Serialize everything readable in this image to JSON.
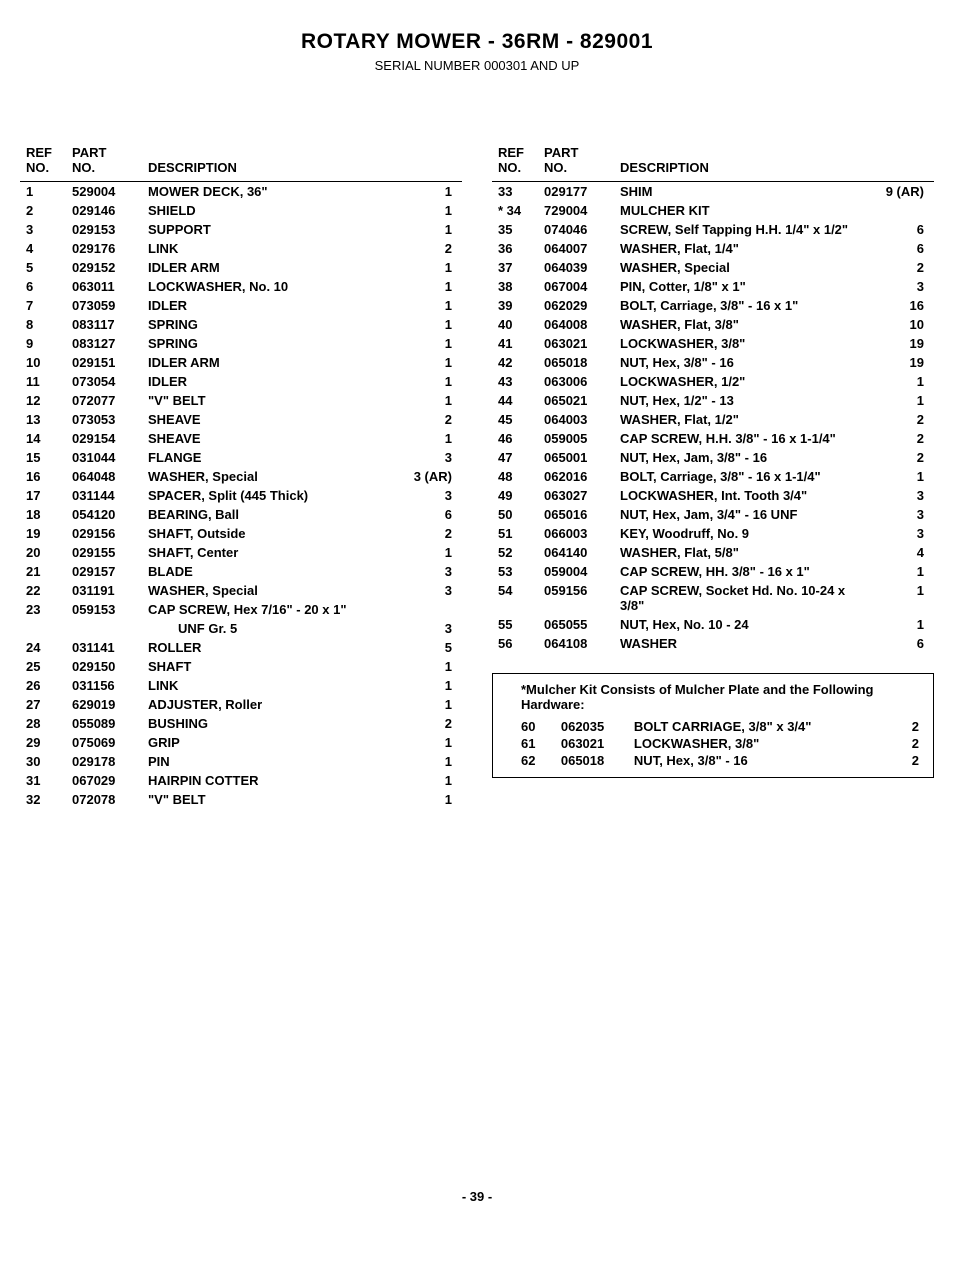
{
  "title": "ROTARY MOWER - 36RM - 829001",
  "subtitle": "SERIAL NUMBER 000301 AND UP",
  "page_number": "- 39 -",
  "headers": {
    "ref": "REF NO.",
    "part": "PART NO.",
    "desc": "DESCRIPTION",
    "qty": ""
  },
  "left_rows": [
    {
      "ref": "1",
      "part": "529004",
      "desc": "MOWER DECK, 36\"",
      "qty": "1"
    },
    {
      "ref": "2",
      "part": "029146",
      "desc": "SHIELD",
      "qty": "1"
    },
    {
      "ref": "3",
      "part": "029153",
      "desc": "SUPPORT",
      "qty": "1"
    },
    {
      "ref": "4",
      "part": "029176",
      "desc": "LINK",
      "qty": "2"
    },
    {
      "ref": "5",
      "part": "029152",
      "desc": "IDLER ARM",
      "qty": "1"
    },
    {
      "ref": "6",
      "part": "063011",
      "desc": "LOCKWASHER, No. 10",
      "qty": "1"
    },
    {
      "ref": "7",
      "part": "073059",
      "desc": "IDLER",
      "qty": "1"
    },
    {
      "ref": "8",
      "part": "083117",
      "desc": "SPRING",
      "qty": "1"
    },
    {
      "ref": "9",
      "part": "083127",
      "desc": "SPRING",
      "qty": "1"
    },
    {
      "ref": "10",
      "part": "029151",
      "desc": "IDLER ARM",
      "qty": "1"
    },
    {
      "ref": "11",
      "part": "073054",
      "desc": "IDLER",
      "qty": "1"
    },
    {
      "ref": "12",
      "part": "072077",
      "desc": "\"V\" BELT",
      "qty": "1"
    },
    {
      "ref": "13",
      "part": "073053",
      "desc": "SHEAVE",
      "qty": "2"
    },
    {
      "ref": "14",
      "part": "029154",
      "desc": "SHEAVE",
      "qty": "1"
    },
    {
      "ref": "15",
      "part": "031044",
      "desc": "FLANGE",
      "qty": "3"
    },
    {
      "ref": "16",
      "part": "064048",
      "desc": "WASHER, Special",
      "qty": "3 (AR)"
    },
    {
      "ref": "17",
      "part": "031144",
      "desc": "SPACER, Split (445 Thick)",
      "qty": "3"
    },
    {
      "ref": "18",
      "part": "054120",
      "desc": "BEARING, Ball",
      "qty": "6"
    },
    {
      "ref": "19",
      "part": "029156",
      "desc": "SHAFT, Outside",
      "qty": "2"
    },
    {
      "ref": "20",
      "part": "029155",
      "desc": "SHAFT, Center",
      "qty": "1"
    },
    {
      "ref": "21",
      "part": "029157",
      "desc": "BLADE",
      "qty": "3"
    },
    {
      "ref": "22",
      "part": "031191",
      "desc": "WASHER, Special",
      "qty": "3"
    },
    {
      "ref": "23",
      "part": "059153",
      "desc": "CAP SCREW, Hex 7/16\" - 20 x 1\"",
      "desc2": "UNF Gr. 5",
      "qty": "3"
    },
    {
      "ref": "24",
      "part": "031141",
      "desc": "ROLLER",
      "qty": "5"
    },
    {
      "ref": "25",
      "part": "029150",
      "desc": "SHAFT",
      "qty": "1"
    },
    {
      "ref": "26",
      "part": "031156",
      "desc": "LINK",
      "qty": "1"
    },
    {
      "ref": "27",
      "part": "629019",
      "desc": "ADJUSTER, Roller",
      "qty": "1"
    },
    {
      "ref": "28",
      "part": "055089",
      "desc": "BUSHING",
      "qty": "2"
    },
    {
      "ref": "29",
      "part": "075069",
      "desc": "GRIP",
      "qty": "1"
    },
    {
      "ref": "30",
      "part": "029178",
      "desc": "PIN",
      "qty": "1"
    },
    {
      "ref": "31",
      "part": "067029",
      "desc": "HAIRPIN COTTER",
      "qty": "1"
    },
    {
      "ref": "32",
      "part": "072078",
      "desc": "\"V\" BELT",
      "qty": "1"
    }
  ],
  "right_rows": [
    {
      "ref": "33",
      "part": "029177",
      "desc": "SHIM",
      "qty": "9 (AR)"
    },
    {
      "ref": "* 34",
      "part": "729004",
      "desc": "MULCHER KIT",
      "qty": ""
    },
    {
      "ref": "35",
      "part": "074046",
      "desc": "SCREW, Self Tapping H.H. 1/4\" x 1/2\"",
      "qty": "6"
    },
    {
      "ref": "36",
      "part": "064007",
      "desc": "WASHER, Flat, 1/4\"",
      "qty": "6"
    },
    {
      "ref": "37",
      "part": "064039",
      "desc": "WASHER, Special",
      "qty": "2"
    },
    {
      "ref": "38",
      "part": "067004",
      "desc": "PIN, Cotter, 1/8\" x 1\"",
      "qty": "3"
    },
    {
      "ref": "39",
      "part": "062029",
      "desc": "BOLT, Carriage, 3/8\" - 16 x 1\"",
      "qty": "16"
    },
    {
      "ref": "40",
      "part": "064008",
      "desc": "WASHER, Flat, 3/8\"",
      "qty": "10"
    },
    {
      "ref": "41",
      "part": "063021",
      "desc": "LOCKWASHER, 3/8\"",
      "qty": "19"
    },
    {
      "ref": "42",
      "part": "065018",
      "desc": "NUT, Hex, 3/8\" - 16",
      "qty": "19"
    },
    {
      "ref": "43",
      "part": "063006",
      "desc": "LOCKWASHER, 1/2\"",
      "qty": "1"
    },
    {
      "ref": "44",
      "part": "065021",
      "desc": "NUT, Hex, 1/2\" - 13",
      "qty": "1"
    },
    {
      "ref": "45",
      "part": "064003",
      "desc": "WASHER, Flat, 1/2\"",
      "qty": "2"
    },
    {
      "ref": "46",
      "part": "059005",
      "desc": "CAP SCREW, H.H. 3/8\" - 16 x 1-1/4\"",
      "qty": "2"
    },
    {
      "ref": "47",
      "part": "065001",
      "desc": "NUT, Hex, Jam, 3/8\" - 16",
      "qty": "2"
    },
    {
      "ref": "48",
      "part": "062016",
      "desc": "BOLT, Carriage, 3/8\" - 16 x 1-1/4\"",
      "qty": "1"
    },
    {
      "ref": "49",
      "part": "063027",
      "desc": "LOCKWASHER, Int. Tooth 3/4\"",
      "qty": "3"
    },
    {
      "ref": "50",
      "part": "065016",
      "desc": "NUT, Hex, Jam, 3/4\" - 16 UNF",
      "qty": "3"
    },
    {
      "ref": "51",
      "part": "066003",
      "desc": "KEY, Woodruff, No. 9",
      "qty": "3"
    },
    {
      "ref": "52",
      "part": "064140",
      "desc": "WASHER, Flat, 5/8\"",
      "qty": "4"
    },
    {
      "ref": "53",
      "part": "059004",
      "desc": "CAP SCREW, HH. 3/8\" - 16 x 1\"",
      "qty": "1"
    },
    {
      "ref": "54",
      "part": "059156",
      "desc": "CAP SCREW, Socket Hd. No. 10-24 x 3/8\"",
      "qty": "1"
    },
    {
      "ref": "55",
      "part": "065055",
      "desc": "NUT, Hex, No. 10 - 24",
      "qty": "1"
    },
    {
      "ref": "56",
      "part": "064108",
      "desc": "WASHER",
      "qty": "6"
    }
  ],
  "kit_title": "*Mulcher Kit Consists of Mulcher Plate and the Following Hardware:",
  "kit_rows": [
    {
      "ref": "60",
      "part": "062035",
      "desc": "BOLT CARRIAGE, 3/8\" x 3/4\"",
      "qty": "2"
    },
    {
      "ref": "61",
      "part": "063021",
      "desc": "LOCKWASHER, 3/8\"",
      "qty": "2"
    },
    {
      "ref": "62",
      "part": "065018",
      "desc": "NUT, Hex, 3/8\" - 16",
      "qty": "2"
    }
  ]
}
